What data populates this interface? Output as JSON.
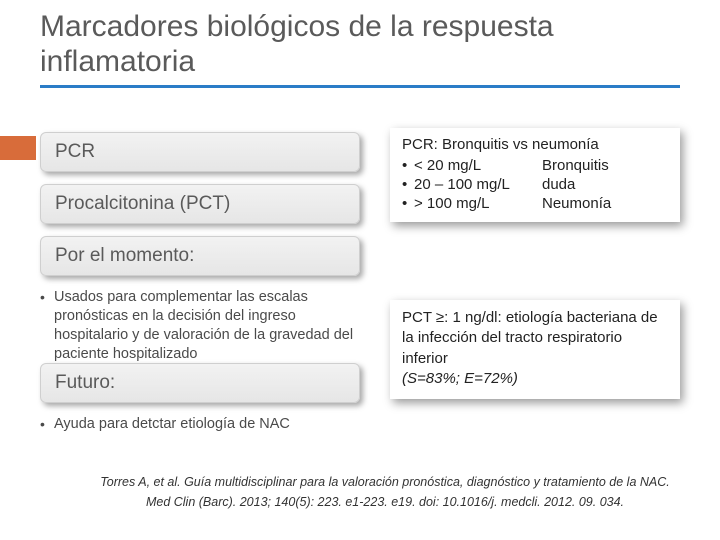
{
  "title": "Marcadores biológicos de la respuesta inflamatoria",
  "colors": {
    "title_text": "#5a5a5a",
    "underline": "#2a7cc7",
    "accent": "#d86c3a",
    "pill_bg_top": "#f2f2f2",
    "pill_bg_bottom": "#e6e6e6",
    "pill_border": "#cfcfcf",
    "body_text": "#4a4a4a",
    "panel_text": "#222222",
    "panel_shadow": "rgba(0,0,0,0.4)"
  },
  "left": {
    "pill1": "PCR",
    "pill2": "Procalcitonina (PCT)",
    "pill3": "Por el momento:",
    "bullet1": "Usados para complementar las escalas pronósticas en la decisión del ingreso hospitalario y de valoración de la gravedad del paciente hospitalizado",
    "pill4": "Futuro:",
    "bullet2": "Ayuda para detctar etiología de NAC"
  },
  "panel1": {
    "title": "PCR: Bronquitis vs neumonía",
    "rows": [
      {
        "val": "< 20 mg/L",
        "lbl": "Bronquitis"
      },
      {
        "val": "20 – 100 mg/L",
        "lbl": "duda"
      },
      {
        "val": "> 100 mg/L",
        "lbl": "Neumonía"
      }
    ]
  },
  "panel2": {
    "line1": "PCT ≥: 1 ng/dl:  etiología bacteriana de la infección del tracto respiratorio inferior",
    "line2": "(S=83%; E=72%)"
  },
  "refs": {
    "r1": "Torres A, et al. Guía multidisciplinar para la valoración pronóstica, diagnóstico y tratamiento de la NAC.",
    "r2": "Med Clin (Barc). 2013; 140(5): 223. e1-223. e19. doi: 10.1016/j. medcli. 2012. 09. 034."
  }
}
